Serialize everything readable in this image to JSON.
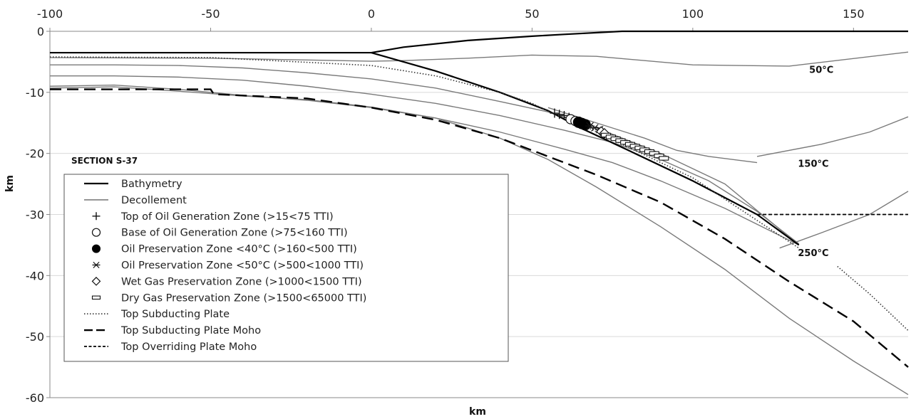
{
  "chart_data": {
    "type": "line",
    "title": "SECTION S-37",
    "xlabel": "km",
    "ylabel": "km",
    "xlim": [
      -100,
      167
    ],
    "ylim": [
      -60,
      0
    ],
    "xticks": [
      "-100",
      "-50",
      "0",
      "50",
      "100",
      "150"
    ],
    "xtick_values": [
      -100,
      -50,
      0,
      50,
      100,
      150
    ],
    "yticks": [
      "0",
      "-10",
      "-20",
      "-30",
      "-40",
      "-50",
      "-60"
    ],
    "ytick_values": [
      0,
      -10,
      -20,
      -30,
      -40,
      -50,
      -60
    ],
    "x_axis_position": "top",
    "grid": "horizontal",
    "legend_position": "lower-left",
    "series": [
      {
        "name": "Bathymetry",
        "style": "solid-thick",
        "color": "#000000",
        "x": [
          -100,
          0,
          10,
          30,
          50,
          60,
          78,
          167
        ],
        "y": [
          -3.5,
          -3.5,
          -2.6,
          -1.5,
          -0.8,
          -0.5,
          0,
          0
        ]
      },
      {
        "name": "Bathymetry",
        "style": "solid-thick",
        "color": "#000000",
        "x": [
          0,
          20,
          40,
          55,
          65,
          80,
          100,
          120,
          133
        ],
        "y": [
          -3.5,
          -6.5,
          -10,
          -13,
          -15.8,
          -19.5,
          -24.5,
          -30,
          -35
        ]
      },
      {
        "name": "Top Subducting Plate",
        "style": "dotted",
        "color": "#333333",
        "x": [
          -100,
          -50,
          0,
          20,
          40,
          50,
          57,
          65,
          80,
          100,
          133
        ],
        "y": [
          -4.2,
          -4.3,
          -5.6,
          -7.3,
          -10,
          -11.8,
          -13.6,
          -15.2,
          -19,
          -24,
          -35.5
        ]
      },
      {
        "name": "Top Subducting Plate",
        "style": "dotted",
        "color": "#333333",
        "x": [
          145,
          155,
          167
        ],
        "y": [
          -38.5,
          -43,
          -49
        ]
      },
      {
        "name": "Top Subducting Plate Moho",
        "style": "dashed-long",
        "color": "#000000",
        "x": [
          -100,
          -50,
          -49,
          -20,
          0,
          20,
          40,
          55,
          70,
          90,
          110,
          130,
          150,
          167
        ],
        "y": [
          -9.5,
          -9.5,
          -10.3,
          -11,
          -12.5,
          -14.5,
          -17.5,
          -20.5,
          -23.5,
          -28,
          -34,
          -41,
          -47.5,
          -55
        ]
      },
      {
        "name": "Top Overriding Plate Moho",
        "style": "dashed-short",
        "color": "#000000",
        "x": [
          120,
          167
        ],
        "y": [
          -30,
          -30
        ]
      }
    ],
    "decollement_lines": [
      {
        "x": [
          -100,
          -50,
          -20,
          0,
          10,
          30,
          50,
          70,
          100,
          130,
          167
        ],
        "y": [
          -4.3,
          -4.4,
          -4.7,
          -4.9,
          -4.8,
          -4.4,
          -3.9,
          -4.1,
          -5.5,
          -5.7,
          -3.4
        ]
      },
      {
        "x": [
          -100,
          -80,
          -60,
          -40,
          -20,
          0,
          20,
          40,
          55,
          70,
          90,
          110,
          133
        ],
        "y": [
          -5.5,
          -5.5,
          -5.6,
          -6.0,
          -6.8,
          -7.8,
          -9.3,
          -11.5,
          -13.2,
          -15.8,
          -20,
          -25,
          -35
        ]
      },
      {
        "x": [
          -100,
          -80,
          -60,
          -40,
          -20,
          0,
          20,
          40,
          60,
          75,
          90,
          105,
          120,
          133
        ],
        "y": [
          -7.3,
          -7.3,
          -7.5,
          -8.0,
          -9.0,
          -10.3,
          -11.8,
          -13.8,
          -16.2,
          -18.2,
          -21,
          -24.5,
          -29.5,
          -34.8
        ]
      },
      {
        "x": [
          -100,
          -80,
          -60,
          -40,
          -20,
          0,
          20,
          40,
          60,
          75,
          90,
          110,
          133
        ],
        "y": [
          -9,
          -8.8,
          -9.5,
          -10.5,
          -11.3,
          -12.5,
          -14.2,
          -16.5,
          -19.3,
          -21.5,
          -24.5,
          -29,
          -35
        ]
      },
      {
        "x": [
          -100,
          -80,
          -60,
          -40,
          -20,
          0,
          20,
          40,
          55,
          70,
          90,
          110,
          130,
          150,
          167
        ],
        "y": [
          -9.3,
          -9.1,
          -9.8,
          -10.6,
          -11.2,
          -12.4,
          -14.2,
          -17.5,
          -21,
          -25.5,
          -32,
          -39,
          -47,
          -54,
          -59.5
        ]
      },
      {
        "x": [
          55,
          70,
          85,
          95,
          105,
          120
        ],
        "y": [
          -12.5,
          -15,
          -17.5,
          -19.5,
          -20.5,
          -21.5
        ]
      },
      {
        "x": [
          120,
          140,
          155,
          167
        ],
        "y": [
          -20.5,
          -18.5,
          -16.5,
          -14
        ]
      },
      {
        "x": [
          127,
          140,
          155,
          167
        ],
        "y": [
          -35.5,
          -33,
          -30,
          -26.2
        ]
      }
    ],
    "markers": [
      {
        "name": "Top of Oil Generation Zone (>15<75 TTI)",
        "symbol": "plus",
        "x": [
          57,
          58.5,
          60,
          61.5
        ],
        "y": [
          -13.4,
          -13.6,
          -13.8,
          -14.1
        ]
      },
      {
        "name": "Base of Oil Generation Zone (>75<160 TTI)",
        "symbol": "circle-open",
        "x": [
          62,
          63.5
        ],
        "y": [
          -14.4,
          -14.7
        ]
      },
      {
        "name": "Oil Preservation Zone <40°C (>160<500 TTI)",
        "symbol": "circle-filled",
        "x": [
          64.5,
          65.5,
          66.5
        ],
        "y": [
          -14.9,
          -15.1,
          -15.3
        ]
      },
      {
        "name": "Oil Preservation Zone <50°C (>500<1000 TTI)",
        "symbol": "asterisk",
        "x": [
          68,
          69.5,
          71
        ],
        "y": [
          -15.5,
          -15.8,
          -16.1
        ]
      },
      {
        "name": "Wet Gas Preservation Zone (>1000<1500 TTI)",
        "symbol": "diamond-open",
        "x": [
          71.5,
          72.5
        ],
        "y": [
          -16.4,
          -16.7
        ]
      },
      {
        "name": "Dry Gas Preservation Zone (>1500<65000 TTI)",
        "symbol": "bar-open",
        "x": [
          73,
          74.5,
          76,
          77.5,
          79,
          80.5,
          82,
          83.5,
          85,
          86.5,
          88,
          89.5,
          91
        ],
        "y": [
          -17.0,
          -17.3,
          -17.6,
          -17.9,
          -18.2,
          -18.5,
          -18.8,
          -19.1,
          -19.4,
          -19.7,
          -20.0,
          -20.4,
          -20.8
        ]
      }
    ],
    "isotherm_labels": [
      {
        "text": "50°C",
        "x": 140,
        "y": -6.8
      },
      {
        "text": "150°C",
        "x": 137.5,
        "y": -22.2
      },
      {
        "text": "250°C",
        "x": 137.5,
        "y": -36.8
      }
    ],
    "legend": [
      {
        "label": "Bathymetry",
        "symbol": "line-thick"
      },
      {
        "label": "Decollement",
        "symbol": "line-thin"
      },
      {
        "label": "Top of Oil Generation Zone (>15<75 TTI)",
        "symbol": "plus"
      },
      {
        "label": "Base of Oil Generation Zone (>75<160 TTI)",
        "symbol": "circle-open"
      },
      {
        "label": "Oil Preservation Zone <40°C (>160<500 TTI)",
        "symbol": "circle-filled"
      },
      {
        "label": "Oil Preservation Zone <50°C (>500<1000 TTI)",
        "symbol": "asterisk"
      },
      {
        "label": "Wet Gas Preservation Zone (>1000<1500 TTI)",
        "symbol": "diamond-open"
      },
      {
        "label": "Dry Gas Preservation Zone (>1500<65000 TTI)",
        "symbol": "bar-open"
      },
      {
        "label": "Top Subducting Plate",
        "symbol": "dotted"
      },
      {
        "label": "Top Subducting Plate Moho",
        "symbol": "dashed-long"
      },
      {
        "label": "Top Overriding Plate Moho",
        "symbol": "dashed-short"
      }
    ]
  }
}
